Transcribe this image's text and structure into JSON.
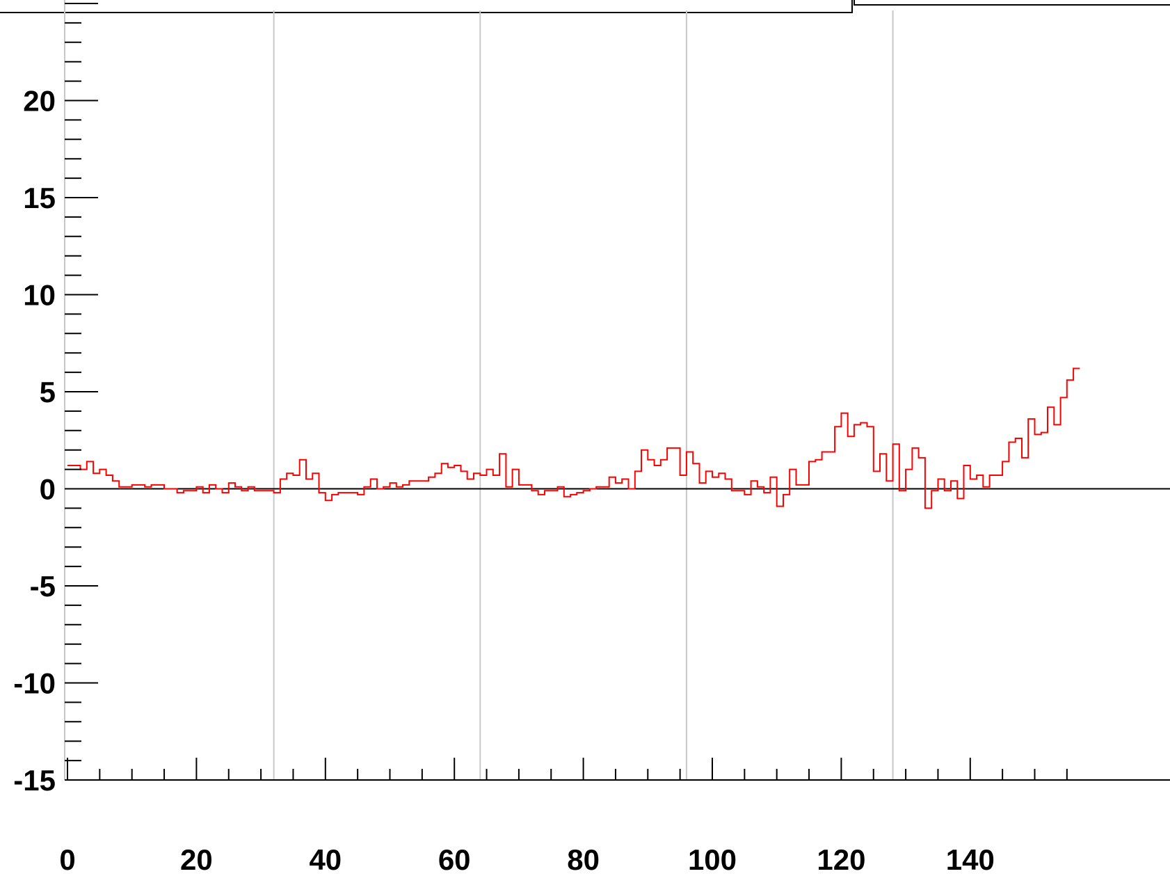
{
  "colors": {
    "series": "#ff0000",
    "axis": "#000000",
    "grid": "#c8c8c8",
    "background": "#ffffff"
  },
  "chart_data": {
    "type": "line",
    "style": "step-histogram",
    "xlim": [
      0,
      159
    ],
    "ylim": [
      -15,
      25
    ],
    "x_ticks": [
      0,
      20,
      40,
      60,
      80,
      100,
      120,
      140
    ],
    "y_ticks": [
      -15,
      -10,
      -5,
      0,
      5,
      10,
      15,
      20
    ],
    "x_tick_labels": [
      "0",
      "20",
      "40",
      "60",
      "80",
      "100",
      "120",
      "140"
    ],
    "y_tick_labels": [
      "-15",
      "-10",
      "-5",
      "0",
      "5",
      "10",
      "15",
      "20"
    ],
    "grid_x": [
      32,
      64,
      96,
      128
    ],
    "reference_line_y": 0,
    "bin_width": 1,
    "series": [
      {
        "values": [
          1.2,
          1.2,
          1.0,
          1.4,
          0.8,
          1.0,
          0.7,
          0.4,
          0.1,
          0.1,
          0.2,
          0.2,
          0.1,
          0.2,
          0.2,
          0.0,
          0.0,
          -0.2,
          -0.1,
          -0.1,
          0.1,
          -0.2,
          0.2,
          0.0,
          -0.2,
          0.3,
          0.1,
          -0.1,
          0.1,
          -0.1,
          -0.1,
          -0.1,
          -0.2,
          0.5,
          0.8,
          0.7,
          1.5,
          0.5,
          0.8,
          -0.2,
          -0.6,
          -0.3,
          -0.2,
          -0.2,
          -0.2,
          -0.3,
          0.1,
          0.5,
          0.0,
          0.1,
          0.3,
          0.1,
          0.2,
          0.4,
          0.4,
          0.4,
          0.6,
          0.8,
          1.3,
          1.1,
          1.2,
          0.9,
          0.5,
          0.8,
          0.7,
          1.0,
          0.7,
          1.8,
          0.1,
          1.0,
          0.2,
          0.2,
          -0.1,
          -0.3,
          -0.1,
          -0.1,
          0.1,
          -0.4,
          -0.3,
          -0.2,
          -0.1,
          0.0,
          0.1,
          0.1,
          0.6,
          0.3,
          0.5,
          0.0,
          0.9,
          2.0,
          1.5,
          1.2,
          1.5,
          2.1,
          2.1,
          0.7,
          1.9,
          1.3,
          0.3,
          0.9,
          0.6,
          0.8,
          0.5,
          -0.1,
          -0.1,
          -0.3,
          0.4,
          0.1,
          -0.2,
          0.6,
          -0.9,
          -0.3,
          1.0,
          0.2,
          0.2,
          1.4,
          1.5,
          1.9,
          1.9,
          3.2,
          3.9,
          2.7,
          3.3,
          3.4,
          3.2,
          0.9,
          1.8,
          0.4,
          2.3,
          -0.1,
          1.0,
          2.1,
          1.6,
          -1.0,
          -0.1,
          0.5,
          -0.1,
          0.4,
          -0.5,
          1.2,
          0.5,
          0.7,
          0.1,
          0.7,
          0.7,
          1.4,
          2.4,
          2.6,
          1.6,
          3.6,
          2.8,
          2.9,
          4.2,
          3.3,
          4.7,
          5.6,
          6.2
        ]
      }
    ]
  }
}
